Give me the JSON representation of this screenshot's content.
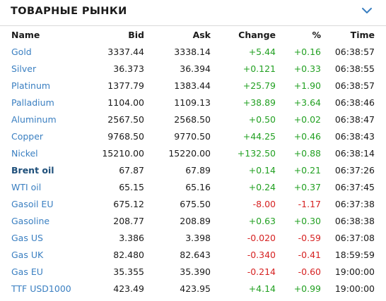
{
  "header": {
    "title": "ТОВАРНЫЕ РЫНКИ"
  },
  "columns": {
    "name": "Name",
    "bid": "Bid",
    "ask": "Ask",
    "change": "Change",
    "pct": "%",
    "time": "Time"
  },
  "colors": {
    "positive": "#22a022",
    "negative": "#d62222",
    "link": "#3a7fc1"
  },
  "rows": [
    {
      "name": "Gold",
      "bid": "3337.44",
      "ask": "3338.14",
      "change": "+5.44",
      "pct": "+0.16",
      "time": "06:38:57",
      "dir": "pos"
    },
    {
      "name": "Silver",
      "bid": "36.373",
      "ask": "36.394",
      "change": "+0.121",
      "pct": "+0.33",
      "time": "06:38:55",
      "dir": "pos"
    },
    {
      "name": "Platinum",
      "bid": "1377.79",
      "ask": "1383.44",
      "change": "+25.79",
      "pct": "+1.90",
      "time": "06:38:57",
      "dir": "pos"
    },
    {
      "name": "Palladium",
      "bid": "1104.00",
      "ask": "1109.13",
      "change": "+38.89",
      "pct": "+3.64",
      "time": "06:38:46",
      "dir": "pos"
    },
    {
      "name": "Aluminum",
      "bid": "2567.50",
      "ask": "2568.50",
      "change": "+0.50",
      "pct": "+0.02",
      "time": "06:38:47",
      "dir": "pos"
    },
    {
      "name": "Copper",
      "bid": "9768.50",
      "ask": "9770.50",
      "change": "+44.25",
      "pct": "+0.46",
      "time": "06:38:43",
      "dir": "pos"
    },
    {
      "name": "Nickel",
      "bid": "15210.00",
      "ask": "15220.00",
      "change": "+132.50",
      "pct": "+0.88",
      "time": "06:38:14",
      "dir": "pos"
    },
    {
      "name": "Brent oil",
      "bid": "67.87",
      "ask": "67.89",
      "change": "+0.14",
      "pct": "+0.21",
      "time": "06:37:26",
      "dir": "pos",
      "bold": true
    },
    {
      "name": "WTI oil",
      "bid": "65.15",
      "ask": "65.16",
      "change": "+0.24",
      "pct": "+0.37",
      "time": "06:37:45",
      "dir": "pos"
    },
    {
      "name": "Gasoil EU",
      "bid": "675.12",
      "ask": "675.50",
      "change": "-8.00",
      "pct": "-1.17",
      "time": "06:37:38",
      "dir": "neg"
    },
    {
      "name": "Gasoline",
      "bid": "208.77",
      "ask": "208.89",
      "change": "+0.63",
      "pct": "+0.30",
      "time": "06:38:38",
      "dir": "pos"
    },
    {
      "name": "Gas US",
      "bid": "3.386",
      "ask": "3.398",
      "change": "-0.020",
      "pct": "-0.59",
      "time": "06:37:08",
      "dir": "neg"
    },
    {
      "name": "Gas UK",
      "bid": "82.480",
      "ask": "82.643",
      "change": "-0.340",
      "pct": "-0.41",
      "time": "18:59:59",
      "dir": "neg"
    },
    {
      "name": "Gas EU",
      "bid": "35.355",
      "ask": "35.390",
      "change": "-0.214",
      "pct": "-0.60",
      "time": "19:00:00",
      "dir": "neg"
    },
    {
      "name": "TTF USD1000",
      "bid": "423.49",
      "ask": "423.95",
      "change": "+4.14",
      "pct": "+0.99",
      "time": "19:00:00",
      "dir": "pos"
    }
  ]
}
